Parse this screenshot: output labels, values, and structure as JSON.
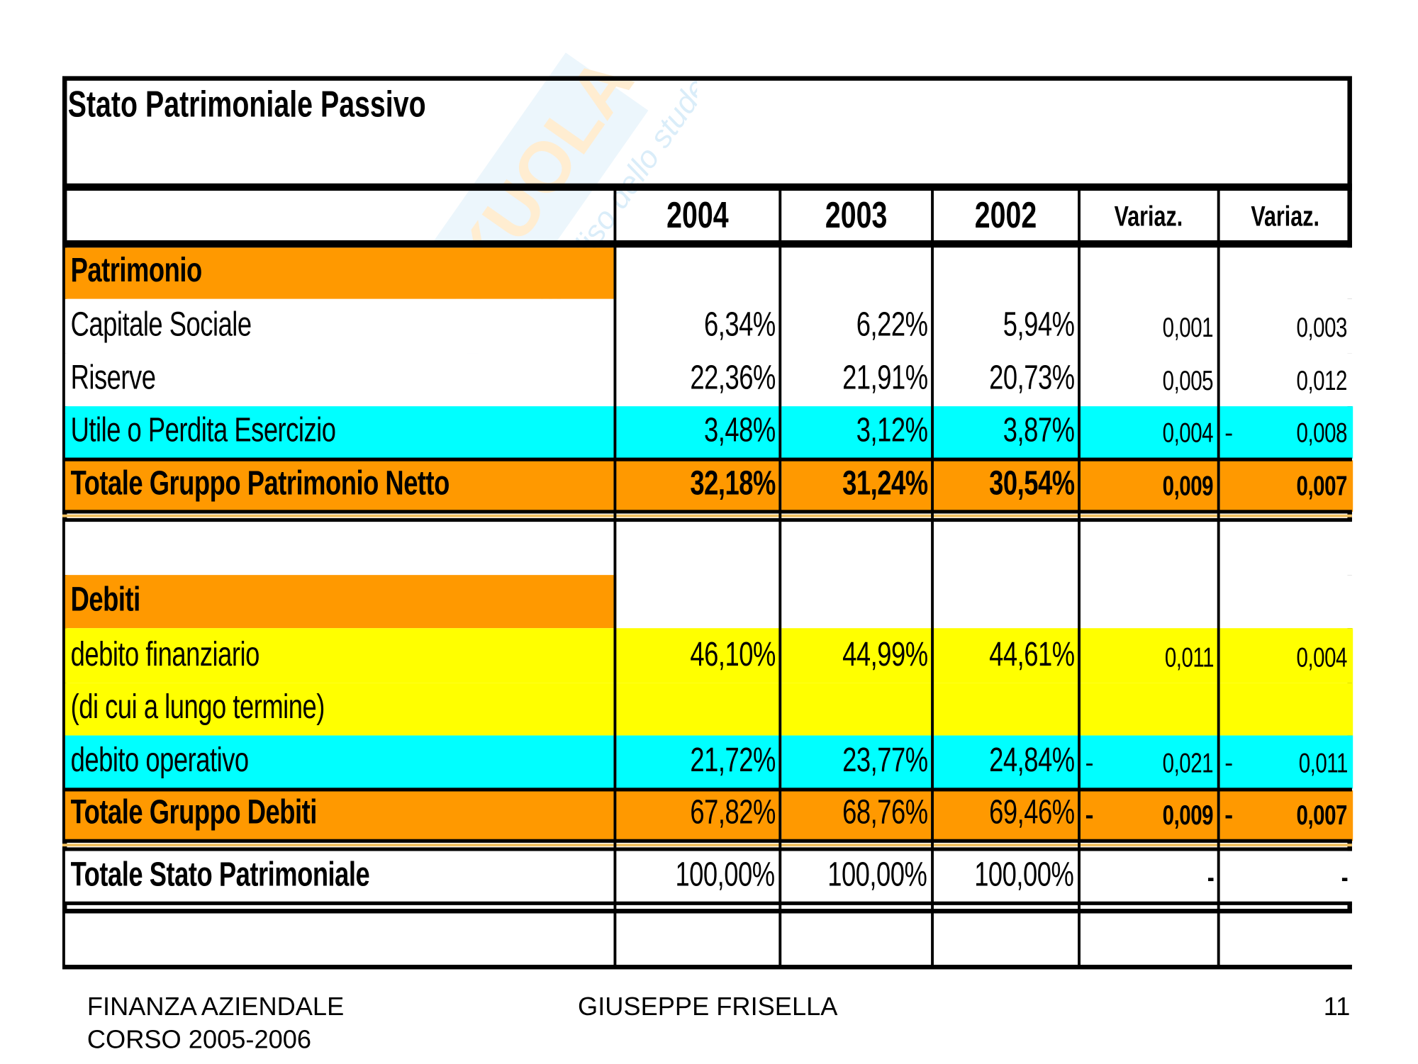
{
  "title": "Stato Patrimoniale Passivo",
  "watermark": {
    "brand": "SKUOLA.net",
    "tagline": "il paradiso dello studente"
  },
  "headers": [
    "2004",
    "2003",
    "2002",
    "Variaz.",
    "Variaz."
  ],
  "colors": {
    "orange": "#ff9900",
    "cyan": "#00ffff",
    "yellow": "#ffff00",
    "white": "#ffffff"
  },
  "rows": [
    {
      "label": "Patrimonio",
      "values": [
        "",
        "",
        "",
        "",
        ""
      ],
      "signs": [
        "",
        ""
      ],
      "style": "section"
    },
    {
      "label": "Capitale Sociale",
      "values": [
        "6,34%",
        "6,22%",
        "5,94%",
        "0,001",
        "0,003"
      ],
      "signs": [
        "",
        ""
      ],
      "style": "plain"
    },
    {
      "label": "Riserve",
      "values": [
        "22,36%",
        "21,91%",
        "20,73%",
        "0,005",
        "0,012"
      ],
      "signs": [
        "",
        ""
      ],
      "style": "plain"
    },
    {
      "label": "Utile o Perdita Esercizio",
      "values": [
        "3,48%",
        "3,12%",
        "3,87%",
        "0,004",
        "0,008"
      ],
      "signs": [
        "",
        "-"
      ],
      "style": "cyan"
    },
    {
      "label": "Totale Gruppo Patrimonio Netto",
      "values": [
        "32,18%",
        "31,24%",
        "30,54%",
        "0,009",
        "0,007"
      ],
      "signs": [
        "",
        ""
      ],
      "style": "total-bold"
    },
    {
      "label": "",
      "values": [
        "",
        "",
        "",
        "",
        ""
      ],
      "signs": [
        "",
        ""
      ],
      "style": "plain"
    },
    {
      "label": "Debiti",
      "values": [
        "",
        "",
        "",
        "",
        ""
      ],
      "signs": [
        "",
        ""
      ],
      "style": "section"
    },
    {
      "label": "debito finanziario",
      "values": [
        "46,10%",
        "44,99%",
        "44,61%",
        "0,011",
        "0,004"
      ],
      "signs": [
        "",
        ""
      ],
      "style": "yellow"
    },
    {
      "label": "(di cui a lungo termine)",
      "values": [
        "",
        "",
        "",
        "",
        ""
      ],
      "signs": [
        "",
        ""
      ],
      "style": "yellow"
    },
    {
      "label": "debito operativo",
      "values": [
        "21,72%",
        "23,77%",
        "24,84%",
        "0,021",
        "0,011"
      ],
      "signs": [
        "-",
        "-"
      ],
      "style": "cyan"
    },
    {
      "label": "Totale Gruppo Debiti",
      "values": [
        "67,82%",
        "68,76%",
        "69,46%",
        "0,009",
        "0,007"
      ],
      "signs": [
        "-",
        "-"
      ],
      "style": "total"
    },
    {
      "label": "Totale Stato Patrimoniale",
      "values": [
        "100,00%",
        "100,00%",
        "100,00%",
        "-",
        "-"
      ],
      "signs": [
        "",
        ""
      ],
      "style": "grand"
    },
    {
      "label": "",
      "values": [
        "",
        "",
        "",
        "",
        ""
      ],
      "signs": [
        "",
        ""
      ],
      "style": "plain"
    }
  ],
  "footer": {
    "course": "FINANZA AZIENDALE",
    "year": "CORSO 2005-2006",
    "author": "GIUSEPPE FRISELLA",
    "page": "11"
  }
}
